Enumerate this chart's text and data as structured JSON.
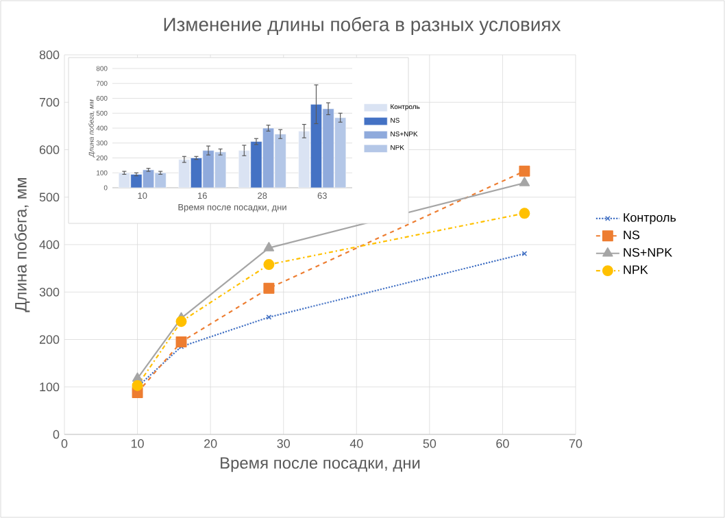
{
  "chart_data": [
    {
      "type": "line",
      "title": "Изменение длины побега в разных условиях",
      "xlabel": "Время после посадки, дни",
      "ylabel": "Длина побега, мм",
      "x": [
        10,
        16,
        28,
        63
      ],
      "xlim": [
        0,
        70
      ],
      "xticks": [
        0,
        10,
        20,
        30,
        40,
        50,
        60,
        70
      ],
      "ylim": [
        0,
        800
      ],
      "yticks": [
        0,
        100,
        200,
        300,
        400,
        500,
        600,
        700,
        800
      ],
      "grid": true,
      "legend": "right",
      "series": [
        {
          "name": "Контроль",
          "color": "#4472c4",
          "values": [
            100,
            185,
            247,
            381
          ],
          "marker": "cross",
          "line_style": "dotted"
        },
        {
          "name": "NS",
          "color": "#ed7d31",
          "values": [
            88,
            195,
            308,
            555
          ],
          "marker": "square",
          "line_style": "dashed"
        },
        {
          "name": "NS+NPK",
          "color": "#a5a5a5",
          "values": [
            118,
            245,
            393,
            530
          ],
          "marker": "triangle",
          "line_style": "solid"
        },
        {
          "name": "NPK",
          "color": "#ffc000",
          "values": [
            103,
            238,
            358,
            466
          ],
          "marker": "circle",
          "line_style": "dashdot"
        }
      ]
    },
    {
      "type": "bar",
      "xlabel": "Время после посадки, дни",
      "ylabel": "Длина побега, мм",
      "categories": [
        "10",
        "16",
        "28",
        "63"
      ],
      "ylim": [
        0,
        800
      ],
      "yticks": [
        0,
        100,
        200,
        300,
        400,
        500,
        600,
        700,
        800
      ],
      "grid": "y",
      "legend": "right",
      "series": [
        {
          "name": "Контроль",
          "color": "#dae3f3",
          "values": [
            100,
            190,
            250,
            380
          ],
          "errors": [
            10,
            20,
            35,
            45
          ]
        },
        {
          "name": "NS",
          "color": "#4472c4",
          "values": [
            90,
            200,
            310,
            560
          ],
          "errors": [
            10,
            10,
            20,
            130
          ]
        },
        {
          "name": "NS+NPK",
          "color": "#8faadc",
          "values": [
            120,
            250,
            400,
            530
          ],
          "errors": [
            10,
            30,
            20,
            40
          ]
        },
        {
          "name": "NPK",
          "color": "#b4c7e7",
          "values": [
            100,
            240,
            360,
            470
          ],
          "errors": [
            10,
            20,
            30,
            30
          ]
        }
      ]
    }
  ]
}
